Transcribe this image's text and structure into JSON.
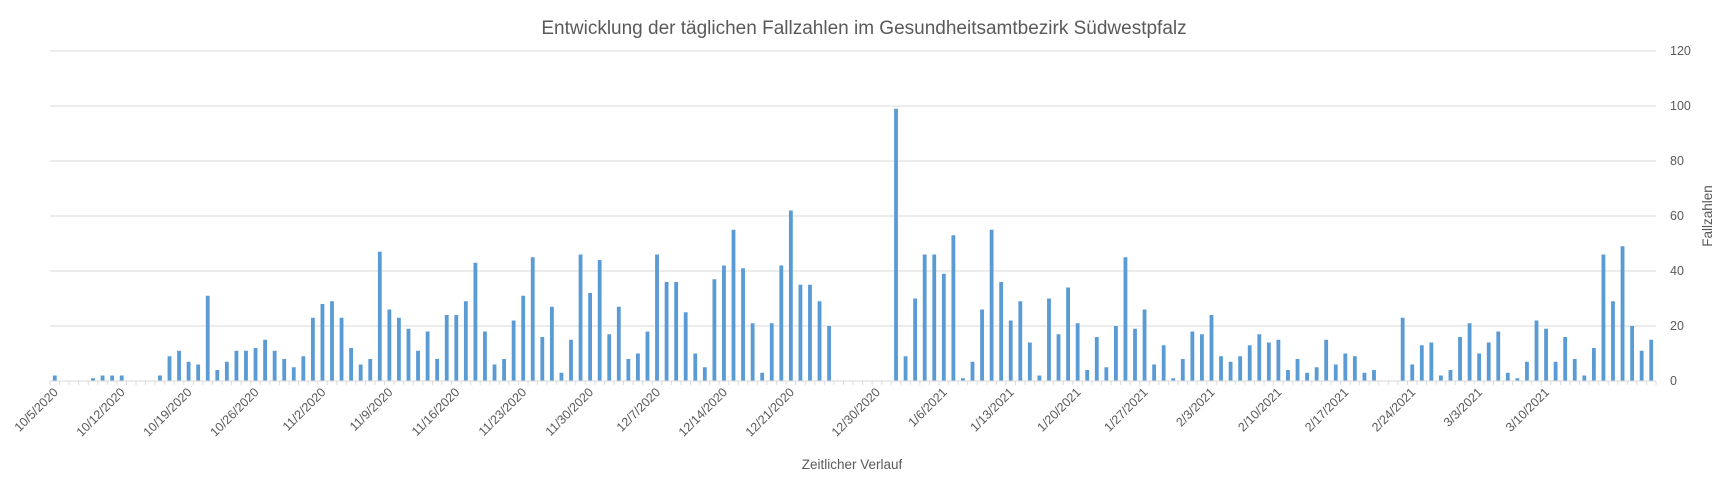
{
  "chart_data": {
    "type": "bar",
    "title": "Entwicklung der täglichen Fallzahlen im Gesundheitsamtbezirk Südwestpfalz",
    "xlabel": "Zeitlicher Verlauf",
    "ylabel": "Fallzahlen",
    "ylim": [
      0,
      120
    ],
    "yticks": [
      0,
      20,
      40,
      60,
      80,
      100,
      120
    ],
    "y_axis_side": "right",
    "grid": true,
    "bar_color": "#5b9bd5",
    "start_date": "10/5/2020",
    "xtick_labels": [
      "10/5/2020",
      "10/12/2020",
      "10/19/2020",
      "10/26/2020",
      "11/2/2020",
      "11/9/2020",
      "11/16/2020",
      "11/23/2020",
      "11/30/2020",
      "12/7/2020",
      "12/14/2020",
      "12/21/2020",
      "12/30/2020",
      "1/6/2021",
      "1/13/2021",
      "1/20/2021",
      "1/27/2021",
      "2/3/2021",
      "2/10/2021",
      "2/17/2021",
      "2/24/2021",
      "3/3/2021",
      "3/10/2021"
    ],
    "values": [
      2,
      0,
      0,
      0,
      1,
      2,
      2,
      2,
      0,
      0,
      0,
      2,
      9,
      11,
      7,
      6,
      31,
      4,
      7,
      11,
      11,
      12,
      15,
      11,
      8,
      5,
      9,
      23,
      28,
      29,
      23,
      12,
      6,
      8,
      47,
      26,
      23,
      19,
      11,
      18,
      8,
      24,
      24,
      29,
      43,
      18,
      6,
      8,
      22,
      31,
      45,
      16,
      27,
      3,
      15,
      46,
      32,
      44,
      17,
      27,
      8,
      10,
      18,
      46,
      36,
      36,
      25,
      10,
      5,
      37,
      42,
      55,
      41,
      21,
      3,
      21,
      42,
      62,
      35,
      35,
      29,
      20,
      0,
      0,
      0,
      0,
      0,
      0,
      99,
      9,
      30,
      46,
      46,
      39,
      53,
      1,
      7,
      26,
      55,
      36,
      22,
      29,
      14,
      2,
      30,
      17,
      34,
      21,
      4,
      16,
      5,
      20,
      45,
      19,
      26,
      6,
      13,
      1,
      8,
      18,
      17,
      24,
      9,
      7,
      9,
      13,
      17,
      14,
      15,
      4,
      8,
      3,
      5,
      15,
      6,
      10,
      9,
      3,
      4,
      0,
      0,
      23,
      6,
      13,
      14,
      2,
      4,
      16,
      21,
      10,
      14,
      18,
      3,
      1,
      7,
      22,
      19,
      7,
      16,
      8,
      2,
      12,
      46,
      29,
      49,
      20,
      11,
      15
    ]
  }
}
